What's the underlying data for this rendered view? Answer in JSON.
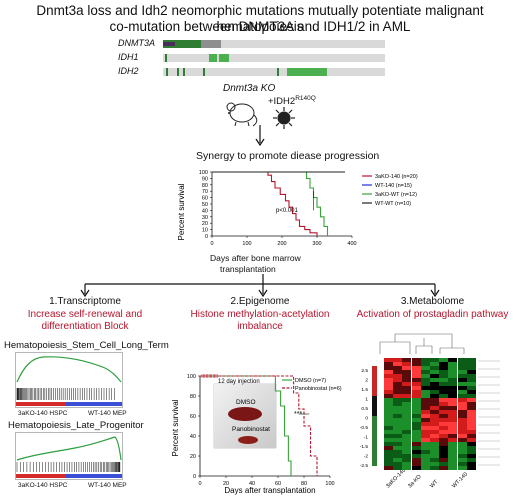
{
  "title_line1": "Dnmt3a loss and Idh2 neomorphic mutations mutually potentiate malignant hematopoiesis",
  "title_line2": "co-mutation between DNMT3A and IDH1/2 in AML",
  "oncoprint": {
    "rows": [
      "DNMT3A",
      "IDH1",
      "IDH2"
    ]
  },
  "model": {
    "ko_label": "Dnmt3a KO",
    "plus_label": "+IDH2",
    "mutation_sup": "R140Q"
  },
  "synergy_text": "Synergy  to promote diease progression",
  "survival_main": {
    "ylabel": "Percent survival",
    "xlabel_line1": "Days after bone marrow",
    "xlabel_line2": "transplantation",
    "pvalue": "p<0.001",
    "yticks": [
      "0",
      "10",
      "20",
      "30",
      "40",
      "50",
      "60",
      "70",
      "80",
      "90",
      "100"
    ],
    "xticks": [
      "0",
      "100",
      "200",
      "300",
      "400"
    ]
  },
  "sections": {
    "transcriptome": {
      "head": "1.Transcriptome",
      "sub1": "Increase self-renewal and",
      "sub2": "differentiation Block"
    },
    "epigenome": {
      "head": "2.Epigenome",
      "sub1": "Histone methylation-acetylation",
      "sub2": "imbalance"
    },
    "metabolome": {
      "head": "3.Metabolome",
      "sub1": "Activation of prostagladin pathway",
      "sub2": ""
    }
  },
  "gsea": {
    "top_title": "Hematopoiesis_Stem_Cell_Long_Term",
    "top_left": "3aKO-140 HSPC",
    "top_right": "WT-140 MEP",
    "bottom_title": "Hematopoiesis_Late_Progenitor",
    "bottom_left": "3aKO-140 HSPC",
    "bottom_right": "WT-140 MEP"
  },
  "epi_plot": {
    "ylabel": "Percent survival",
    "xlabel": "Days after transplantation",
    "injection": "12 day injection",
    "dmso_photo": "DMSO",
    "pano_photo": "Panobinostat",
    "stars": "***",
    "yticks": [
      "0",
      "20",
      "40",
      "60",
      "80",
      "100"
    ],
    "xticks": [
      "0",
      "20",
      "40",
      "60",
      "80",
      "100"
    ]
  },
  "heatmap": {
    "scale": [
      "2.5",
      "2",
      "1.5",
      "1",
      "0.5",
      "0",
      "-0.5",
      "-1",
      "-1.5",
      "-2",
      "-2.5"
    ],
    "columns": [
      "3aKO-140",
      "3a-KO",
      "WT",
      "WT-140"
    ]
  },
  "chart_data": [
    {
      "type": "line",
      "title": "",
      "xlabel": "Days after bone marrow transplantation",
      "ylabel": "Percent survival",
      "xlim": [
        0,
        400
      ],
      "ylim": [
        0,
        100
      ],
      "series": [
        {
          "name": "3aKO-140 (n=20)",
          "color": "#b5172f",
          "x": [
            0,
            150,
            160,
            170,
            180,
            195,
            210,
            220,
            230,
            240,
            250,
            265,
            280,
            300
          ],
          "y": [
            100,
            100,
            95,
            85,
            75,
            65,
            55,
            45,
            35,
            25,
            15,
            10,
            5,
            0
          ]
        },
        {
          "name": "WT-140 (n=15)",
          "color": "#1f2bd6",
          "x": [
            0,
            380
          ],
          "y": [
            100,
            100
          ]
        },
        {
          "name": "3aKO-WT (n=12)",
          "color": "#3aa33a",
          "x": [
            0,
            260,
            270,
            280,
            290,
            300,
            310,
            320,
            330
          ],
          "y": [
            100,
            100,
            90,
            75,
            60,
            45,
            30,
            15,
            0
          ]
        },
        {
          "name": "WT-WT (n=10)",
          "color": "#222222",
          "x": [
            0,
            380
          ],
          "y": [
            100,
            100
          ]
        }
      ]
    },
    {
      "type": "line",
      "title": "",
      "xlabel": "Days after transplantation",
      "ylabel": "Percent survival",
      "xlim": [
        0,
        100
      ],
      "ylim": [
        0,
        100
      ],
      "series": [
        {
          "name": "DMSO (n=7)",
          "color": "#3aa33a",
          "x": [
            0,
            55,
            58,
            62,
            65,
            68,
            70
          ],
          "y": [
            100,
            100,
            85,
            70,
            40,
            15,
            0
          ]
        },
        {
          "name": "Panobinostat (n=6)",
          "color": "#b5172f",
          "x": [
            0,
            68,
            72,
            76,
            80,
            85,
            90
          ],
          "y": [
            100,
            100,
            83,
            67,
            50,
            20,
            0
          ]
        }
      ]
    }
  ]
}
